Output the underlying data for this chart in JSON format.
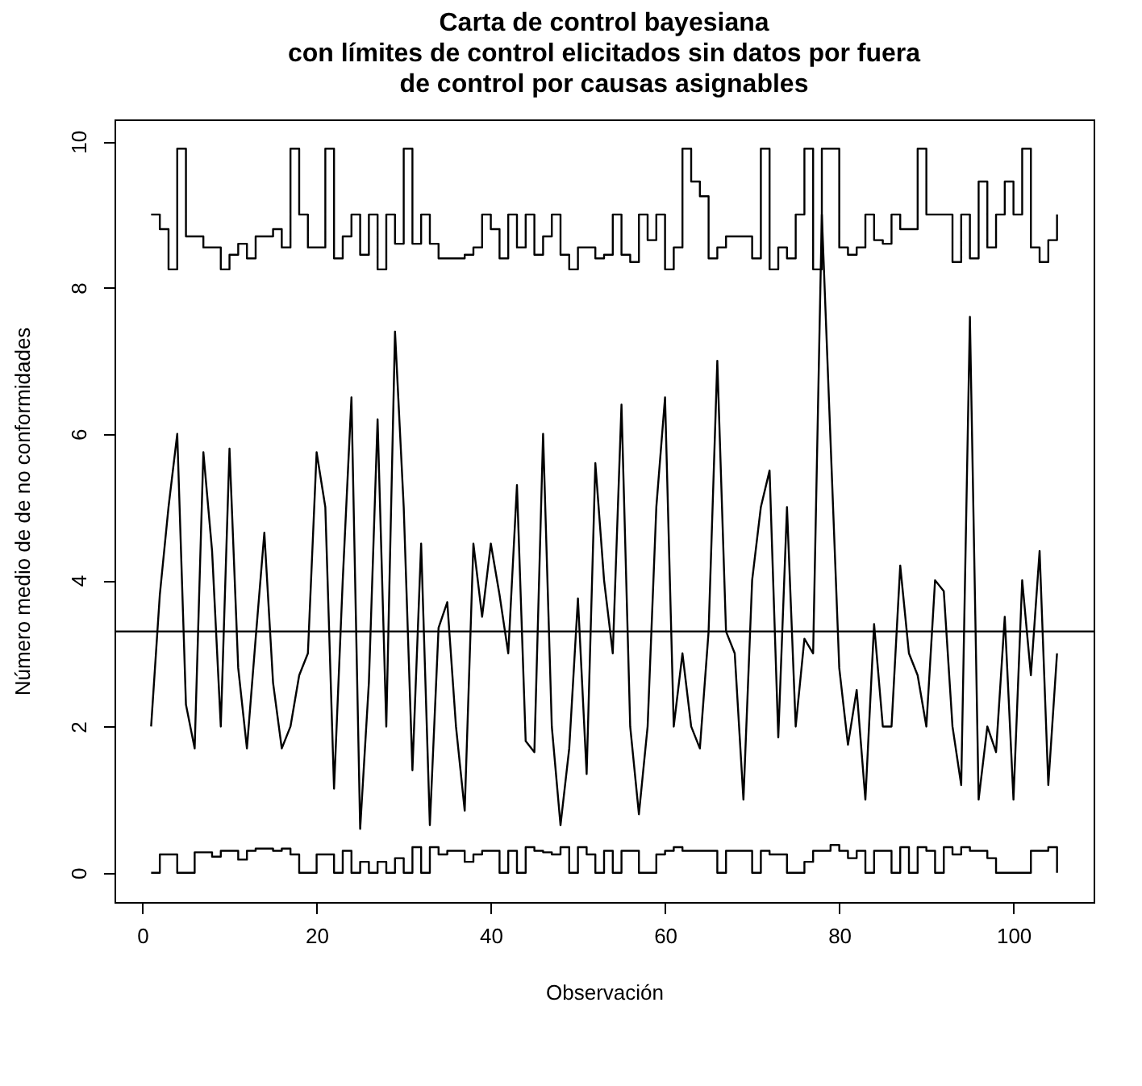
{
  "chart_data": {
    "type": "step",
    "title": "Carta de control bayesiana\ncon límites de control elicitados sin datos por fuera\nde control por causas asignables",
    "xlabel": "Observación",
    "ylabel": "Número medio de de no conformidades",
    "x": [
      1,
      2,
      3,
      4,
      5,
      6,
      7,
      8,
      9,
      10,
      11,
      12,
      13,
      14,
      15,
      16,
      17,
      18,
      19,
      20,
      21,
      22,
      23,
      24,
      25,
      26,
      27,
      28,
      29,
      30,
      31,
      32,
      33,
      34,
      35,
      36,
      37,
      38,
      39,
      40,
      41,
      42,
      43,
      44,
      45,
      46,
      47,
      48,
      49,
      50,
      51,
      52,
      53,
      54,
      55,
      56,
      57,
      58,
      59,
      60,
      61,
      62,
      63,
      64,
      65,
      66,
      67,
      68,
      69,
      70,
      71,
      72,
      73,
      74,
      75,
      76,
      77,
      78,
      79,
      80,
      81,
      82,
      83,
      84,
      85,
      86,
      87,
      88,
      89,
      90,
      91,
      92,
      93,
      94,
      95,
      96,
      97,
      98,
      99,
      100,
      101,
      102,
      103,
      104,
      105
    ],
    "series": [
      {
        "color": "#000000",
        "values": [
          9.0,
          8.8,
          8.25,
          9.9,
          8.7,
          8.7,
          8.55,
          8.55,
          8.25,
          8.45,
          8.6,
          8.4,
          8.7,
          8.7,
          8.8,
          8.55,
          9.9,
          9.0,
          8.55,
          8.55,
          9.9,
          8.4,
          8.7,
          9.0,
          8.45,
          9.0,
          8.25,
          9.0,
          8.6,
          9.9,
          8.6,
          9.0,
          8.6,
          8.4,
          8.4,
          8.4,
          8.45,
          8.55,
          9.0,
          8.8,
          8.4,
          9.0,
          8.55,
          9.0,
          8.45,
          8.7,
          9.0,
          8.45,
          8.25,
          8.55,
          8.55,
          8.4,
          8.45,
          9.0,
          8.45,
          8.35,
          9.0,
          8.65,
          9.0,
          8.25,
          8.55,
          9.9,
          9.45,
          9.25,
          8.4,
          8.55,
          8.7,
          8.7,
          8.7,
          8.4,
          9.9,
          8.25,
          8.55,
          8.4,
          9.0,
          9.9,
          8.25,
          9.9,
          9.9,
          8.55,
          8.45,
          8.55,
          9.0,
          8.65,
          8.6,
          9.0,
          8.8,
          8.8,
          9.9,
          9.0,
          9.0,
          9.0,
          8.35,
          9.0,
          8.4,
          9.45,
          8.55,
          9.0,
          9.45,
          9.0,
          9.9,
          8.55,
          8.35,
          8.65,
          9.0
        ]
      },
      {
        "type": "line",
        "color": "#000000",
        "values": [
          2.0,
          3.8,
          5.0,
          6.0,
          2.3,
          1.7,
          5.75,
          4.4,
          2.0,
          5.8,
          2.8,
          1.7,
          3.2,
          4.65,
          2.6,
          1.7,
          2.0,
          2.7,
          3.0,
          5.75,
          5.0,
          1.15,
          4.0,
          6.5,
          0.6,
          2.6,
          6.2,
          2.0,
          7.4,
          5.0,
          1.4,
          4.5,
          0.65,
          3.35,
          3.7,
          2.0,
          0.85,
          4.5,
          3.5,
          4.5,
          3.8,
          3.0,
          5.3,
          1.8,
          1.65,
          6.0,
          2.0,
          0.65,
          1.7,
          3.75,
          1.35,
          5.6,
          4.0,
          3.0,
          6.4,
          2.0,
          0.8,
          2.0,
          5.0,
          6.5,
          2.0,
          3.0,
          2.0,
          1.7,
          3.3,
          7.0,
          3.3,
          3.0,
          1.0,
          4.0,
          5.0,
          5.5,
          1.85,
          5.0,
          2.0,
          3.2,
          3.0,
          9.0,
          5.9,
          2.8,
          1.75,
          2.5,
          1.0,
          3.4,
          2.0,
          2.0,
          4.2,
          3.0,
          2.7,
          2.0,
          4.0,
          3.85,
          2.0,
          1.2,
          7.6,
          1.0,
          2.0,
          1.65,
          3.5,
          1.0,
          4.0,
          2.7,
          4.4,
          1.2,
          3.0
        ]
      },
      {
        "color": "#000000",
        "values": [
          0,
          0.25,
          0.25,
          0,
          0,
          0.28,
          0.28,
          0.22,
          0.3,
          0.3,
          0.18,
          0.3,
          0.33,
          0.33,
          0.3,
          0.33,
          0.25,
          0,
          0,
          0.25,
          0.25,
          0,
          0.3,
          0,
          0.15,
          0,
          0.15,
          0,
          0.2,
          0,
          0.35,
          0,
          0.35,
          0.25,
          0.3,
          0.3,
          0.15,
          0.25,
          0.3,
          0.3,
          0,
          0.3,
          0,
          0.35,
          0.3,
          0.28,
          0.25,
          0.35,
          0,
          0.35,
          0.25,
          0,
          0.3,
          0,
          0.3,
          0.3,
          0,
          0,
          0.25,
          0.3,
          0.35,
          0.3,
          0.3,
          0.3,
          0.3,
          0,
          0.3,
          0.3,
          0.3,
          0,
          0.3,
          0.25,
          0.25,
          0,
          0,
          0.15,
          0.3,
          0.3,
          0.38,
          0.3,
          0.2,
          0.3,
          0,
          0.3,
          0.3,
          0,
          0.35,
          0,
          0.35,
          0.3,
          0,
          0.35,
          0.25,
          0.35,
          0.3,
          0.3,
          0.2,
          0,
          0,
          0,
          0,
          0.3,
          0.3,
          0.35,
          0
        ]
      }
    ],
    "ref_lines": [
      {
        "axis": "y",
        "value": 3.3,
        "color": "#000000"
      }
    ],
    "xlim": [
      -3.2,
      109.2
    ],
    "xticks": [
      0,
      20,
      40,
      60,
      80,
      100
    ],
    "ylim": [
      -0.4,
      10.3
    ],
    "yticks": [
      0,
      2,
      4,
      6,
      8,
      10
    ],
    "grid": false
  }
}
